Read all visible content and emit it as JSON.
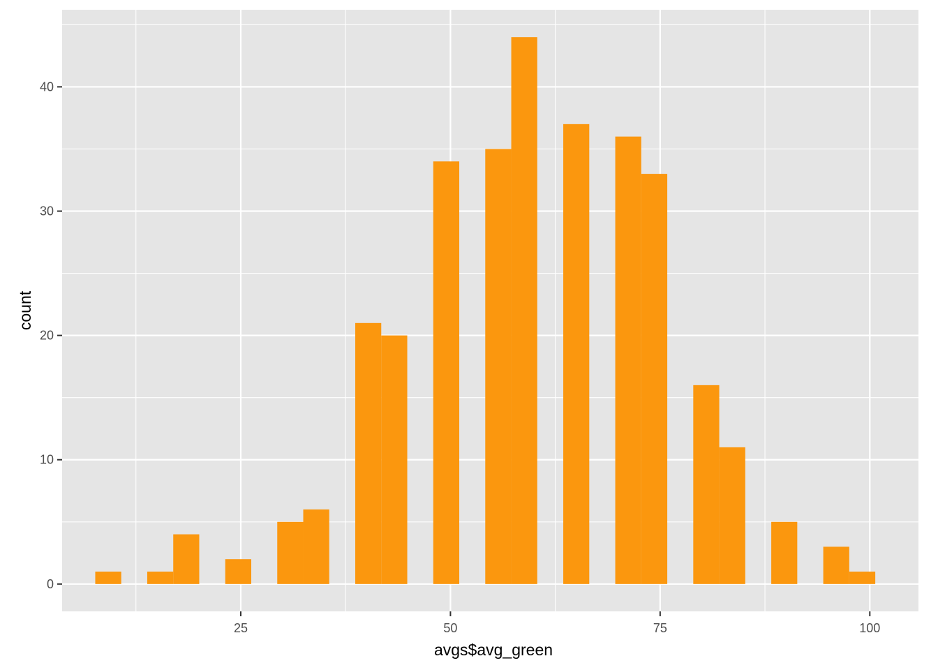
{
  "chart_data": {
    "type": "bar",
    "subtype": "histogram",
    "title": "",
    "xlabel": "avgs$avg_green",
    "ylabel": "count",
    "xlim": [
      3.7,
      105.8
    ],
    "ylim": [
      -2.2,
      46.2
    ],
    "x_ticks": [
      25,
      50,
      75,
      100
    ],
    "y_ticks": [
      0,
      10,
      20,
      30,
      40
    ],
    "grid": true,
    "background": "#e5e5e5",
    "grid_color": "#ffffff",
    "bar_color": "#fb970e",
    "bin_width": 3.1,
    "bins": [
      {
        "x": 9.2,
        "count": 1
      },
      {
        "x": 12.3,
        "count": 0
      },
      {
        "x": 15.4,
        "count": 1
      },
      {
        "x": 18.5,
        "count": 4
      },
      {
        "x": 21.6,
        "count": 0
      },
      {
        "x": 24.7,
        "count": 2
      },
      {
        "x": 27.8,
        "count": 0
      },
      {
        "x": 30.9,
        "count": 5
      },
      {
        "x": 34.0,
        "count": 6
      },
      {
        "x": 37.1,
        "count": 0
      },
      {
        "x": 40.2,
        "count": 21
      },
      {
        "x": 43.3,
        "count": 20
      },
      {
        "x": 46.4,
        "count": 0
      },
      {
        "x": 49.5,
        "count": 34
      },
      {
        "x": 52.6,
        "count": 0
      },
      {
        "x": 55.7,
        "count": 35
      },
      {
        "x": 58.8,
        "count": 44
      },
      {
        "x": 61.9,
        "count": 0
      },
      {
        "x": 65.0,
        "count": 37
      },
      {
        "x": 68.1,
        "count": 0
      },
      {
        "x": 71.2,
        "count": 36
      },
      {
        "x": 74.3,
        "count": 33
      },
      {
        "x": 77.4,
        "count": 0
      },
      {
        "x": 80.5,
        "count": 16
      },
      {
        "x": 83.6,
        "count": 11
      },
      {
        "x": 86.7,
        "count": 0
      },
      {
        "x": 89.8,
        "count": 5
      },
      {
        "x": 92.9,
        "count": 0
      },
      {
        "x": 96.0,
        "count": 3
      },
      {
        "x": 99.1,
        "count": 1
      }
    ]
  }
}
